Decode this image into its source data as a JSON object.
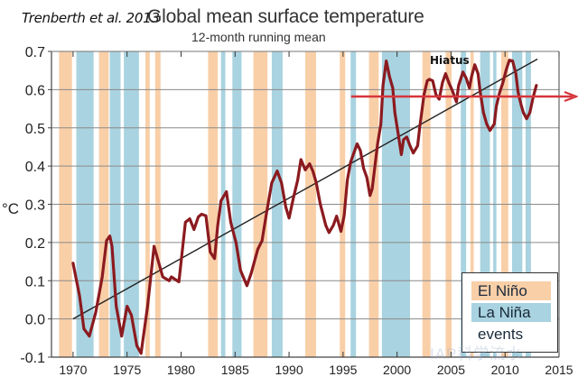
{
  "header": {
    "source": "Trenberth et al. 2013"
  },
  "chart_data": {
    "type": "line",
    "title": "Global mean surface temperature",
    "subtitle": "12-month running mean",
    "xlabel": "",
    "ylabel": "°C",
    "xlim": [
      1968,
      2015
    ],
    "ylim": [
      -0.1,
      0.7
    ],
    "grid": true,
    "x_ticks": [
      1970,
      1975,
      1980,
      1985,
      1990,
      1995,
      2000,
      2005,
      2010,
      2015
    ],
    "x_tick_labels": [
      "1970",
      "1975",
      "1980",
      "1985",
      "1990",
      "1995",
      "2000",
      "2005",
      "2010",
      "2015"
    ],
    "y_ticks": [
      -0.1,
      0.0,
      0.1,
      0.2,
      0.3,
      0.4,
      0.5,
      0.6,
      0.7
    ],
    "y_tick_labels": [
      "-0.1",
      "0.0",
      "0.1",
      "0.2",
      "0.3",
      "0.4",
      "0.5",
      "0.6",
      "0.7"
    ],
    "series": [
      {
        "name": "12-month running mean",
        "color": "#8b1a1f",
        "x": [
          1970.0,
          1970.6,
          1971.0,
          1971.5,
          1972.1,
          1972.7,
          1973.1,
          1973.4,
          1973.6,
          1974.0,
          1974.5,
          1975.0,
          1975.4,
          1975.9,
          1976.3,
          1976.9,
          1977.5,
          1977.9,
          1978.3,
          1978.9,
          1979.1,
          1979.8,
          1980.1,
          1980.4,
          1980.8,
          1981.2,
          1981.6,
          1981.9,
          1982.3,
          1982.7,
          1983.1,
          1983.4,
          1983.7,
          1984.2,
          1984.6,
          1985.1,
          1985.5,
          1986.1,
          1986.5,
          1987.1,
          1987.5,
          1987.9,
          1988.4,
          1988.9,
          1989.3,
          1989.7,
          1990.0,
          1990.4,
          1990.8,
          1991.1,
          1991.5,
          1991.9,
          1992.2,
          1992.5,
          1992.9,
          1993.4,
          1993.7,
          1994.1,
          1994.4,
          1994.8,
          1995.1,
          1995.4,
          1995.7,
          1996.0,
          1996.3,
          1996.6,
          1996.9,
          1997.2,
          1997.5,
          1997.7,
          1997.9,
          1998.2,
          1998.5,
          1998.7,
          1999.0,
          1999.3,
          1999.6,
          1999.8,
          2000.1,
          2000.4,
          2000.6,
          2000.9,
          2001.2,
          2001.5,
          2001.9,
          2002.1,
          2002.5,
          2002.8,
          2003.0,
          2003.3,
          2003.6,
          2003.9,
          2004.2,
          2004.5,
          2004.8,
          2005.1,
          2005.5,
          2005.7,
          2006.1,
          2006.4,
          2006.7,
          2006.9,
          2007.2,
          2007.5,
          2007.7,
          2008.0,
          2008.3,
          2008.6,
          2009.0,
          2009.2,
          2009.5,
          2009.8,
          2010.1,
          2010.4,
          2010.7,
          2011.0,
          2011.2,
          2011.5,
          2011.7,
          2012.0,
          2012.3,
          2012.6,
          2012.9
        ],
        "y": [
          0.146,
          0.06,
          -0.026,
          -0.045,
          0.017,
          0.11,
          0.205,
          0.217,
          0.19,
          0.033,
          -0.045,
          0.033,
          0.01,
          -0.07,
          -0.09,
          0.033,
          0.19,
          0.15,
          0.11,
          0.1,
          0.11,
          0.097,
          0.175,
          0.253,
          0.262,
          0.234,
          0.267,
          0.274,
          0.27,
          0.175,
          0.158,
          0.245,
          0.309,
          0.333,
          0.253,
          0.198,
          0.127,
          0.087,
          0.12,
          0.182,
          0.205,
          0.276,
          0.356,
          0.387,
          0.356,
          0.292,
          0.264,
          0.316,
          0.363,
          0.417,
          0.39,
          0.406,
          0.387,
          0.358,
          0.3,
          0.245,
          0.226,
          0.245,
          0.269,
          0.229,
          0.269,
          0.363,
          0.41,
          0.434,
          0.458,
          0.441,
          0.394,
          0.37,
          0.323,
          0.34,
          0.387,
          0.458,
          0.51,
          0.611,
          0.675,
          0.634,
          0.604,
          0.54,
          0.486,
          0.43,
          0.469,
          0.476,
          0.453,
          0.434,
          0.453,
          0.5,
          0.587,
          0.623,
          0.627,
          0.623,
          0.587,
          0.575,
          0.618,
          0.642,
          0.618,
          0.599,
          0.568,
          0.611,
          0.646,
          0.63,
          0.604,
          0.634,
          0.665,
          0.642,
          0.594,
          0.54,
          0.51,
          0.493,
          0.51,
          0.557,
          0.592,
          0.618,
          0.651,
          0.677,
          0.675,
          0.642,
          0.594,
          0.559,
          0.54,
          0.524,
          0.54,
          0.58,
          0.611
        ]
      }
    ],
    "trend_line": {
      "name": "linear trend",
      "color": "#222222",
      "x": [
        1970.0,
        2013.0
      ],
      "y": [
        0.0,
        0.68
      ]
    },
    "hiatus_line": {
      "label": "Hiatus",
      "color": "#d6363c",
      "y": 0.582,
      "x_start": 1997.0,
      "arrow": "right"
    },
    "bands": {
      "el_nino": {
        "label": "El Niño",
        "color": "#f9cfa8",
        "ranges": [
          [
            1968.7,
            1969.9
          ],
          [
            1972.4,
            1973.3
          ],
          [
            1976.7,
            1977.1
          ],
          [
            1977.6,
            1978.1
          ],
          [
            1982.5,
            1983.4
          ],
          [
            1986.7,
            1988.0
          ],
          [
            1991.5,
            1992.5
          ],
          [
            1994.7,
            1995.2
          ],
          [
            1997.4,
            1998.3
          ],
          [
            2002.35,
            2003.1
          ],
          [
            2004.5,
            2005.05
          ],
          [
            2006.8,
            2007.1
          ],
          [
            2009.65,
            2010.3
          ]
        ]
      },
      "la_nina": {
        "label": "La Niña",
        "color": "#a9d3e0",
        "ranges": [
          [
            1970.3,
            1971.9
          ],
          [
            1973.4,
            1974.4
          ],
          [
            1974.7,
            1976.1
          ],
          [
            1983.7,
            1984.1
          ],
          [
            1984.75,
            1985.6
          ],
          [
            1988.4,
            1989.4
          ],
          [
            1995.7,
            1996.2
          ],
          [
            1998.6,
            2001.2
          ],
          [
            2005.9,
            2006.4
          ],
          [
            2007.7,
            2008.6
          ],
          [
            2008.9,
            2009.2
          ],
          [
            2010.65,
            2011.6
          ],
          [
            2011.9,
            2012.4
          ]
        ]
      }
    },
    "legend": {
      "position": "bottom-right",
      "entries": [
        "El Niño",
        "La Niña"
      ],
      "caption": "events"
    }
  },
  "watermark": "IAP科学流水"
}
